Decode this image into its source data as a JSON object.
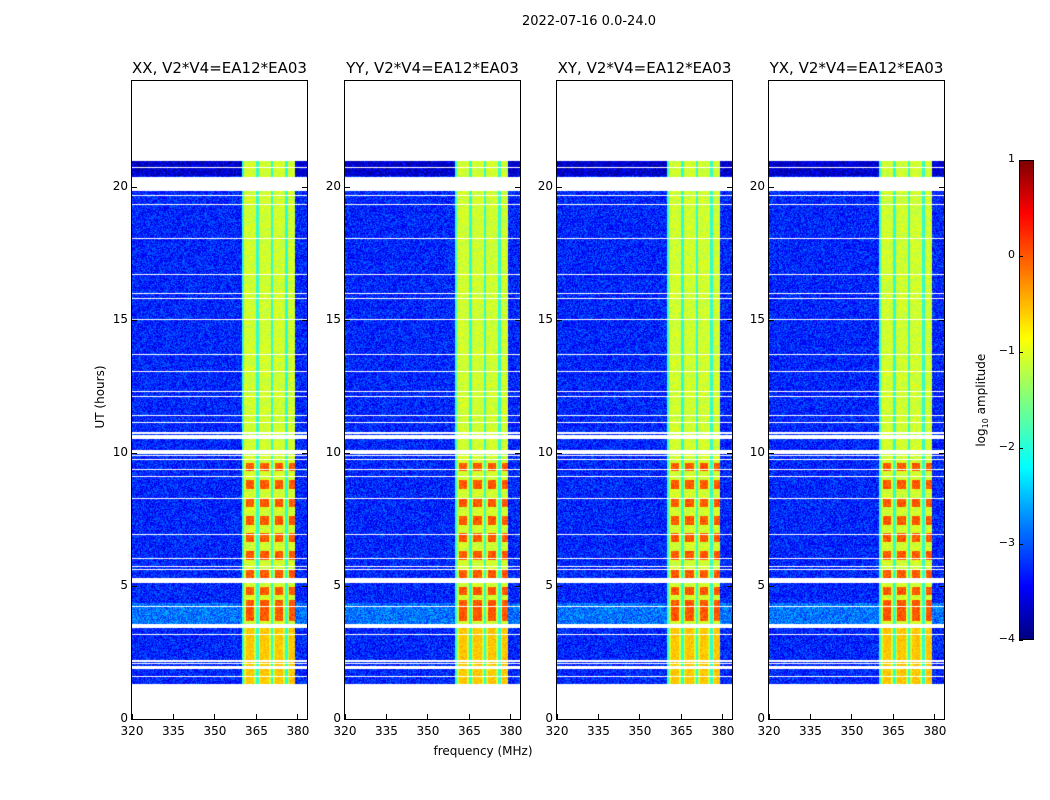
{
  "chart_data": {
    "type": "heatmap",
    "title": "2022-07-16 0.0-24.0",
    "xlabel": "frequency (MHz)",
    "ylabel": "UT (hours)",
    "xlim": [
      320,
      384
    ],
    "ylim": [
      0,
      24
    ],
    "xticks": [
      320,
      335,
      350,
      365,
      380
    ],
    "yticks": [
      0,
      5,
      10,
      15,
      20
    ],
    "data_time_range_hours": [
      1.35,
      21.0
    ],
    "rfi_band_mhz": [
      360,
      380
    ],
    "panels": [
      {
        "title": "XX, V2*V4=EA12*EA03"
      },
      {
        "title": "YY, V2*V4=EA12*EA03"
      },
      {
        "title": "XY, V2*V4=EA12*EA03"
      },
      {
        "title": "YX, V2*V4=EA12*EA03"
      }
    ],
    "colorbar": {
      "label": "log10 amplitude",
      "label_main": "log",
      "label_sub": "10",
      "label_rest": " amplitude",
      "range": [
        -4,
        1
      ],
      "ticks": [
        -4,
        -3,
        -2,
        -1,
        0,
        1
      ],
      "tick_labels": [
        "−4",
        "−3",
        "−2",
        "−1",
        "0",
        "1"
      ],
      "colormap": "jet"
    },
    "flagged_gaps_hours": [
      [
        20.4,
        19.88
      ],
      [
        10.0,
        10.15
      ],
      [
        10.55,
        10.7
      ],
      [
        5.15,
        5.3
      ],
      [
        3.45,
        3.6
      ],
      [
        1.9,
        2.0
      ],
      [
        2.15,
        2.25
      ]
    ]
  }
}
